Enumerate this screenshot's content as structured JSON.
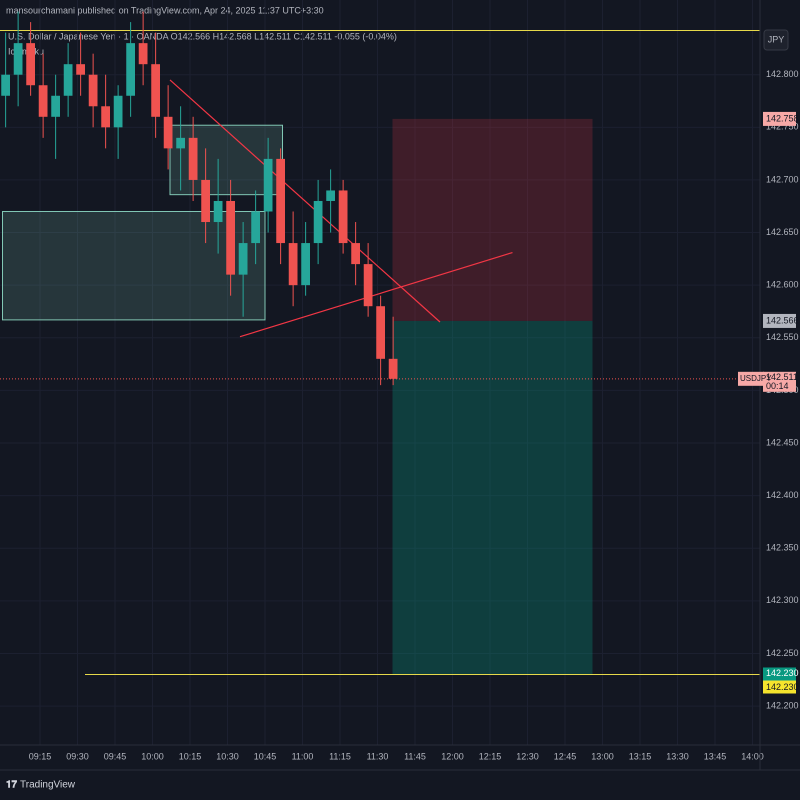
{
  "chart_data": {
    "type": "candlestick",
    "attribution": "mansourchamani published on TradingView.com, Apr 24, 2025 11:37 UTC+3:30",
    "symbol_line": "U.S. Dollar / Japanese Yen · 1 · OANDA  O142.566 H142.568 L142.511 C142.511 -0.055 (-0.04%)",
    "indicator": "Ichimoku",
    "currency_button": "JPY",
    "brand": "TradingView",
    "up_color": "#26a69a",
    "down_color": "#ef5350",
    "x": [
      "09:00",
      "09:05",
      "09:10",
      "09:15",
      "09:20",
      "09:25",
      "09:30",
      "09:35",
      "09:40",
      "09:45",
      "09:50",
      "09:55",
      "10:00",
      "10:05",
      "10:10",
      "10:15",
      "10:20",
      "10:25",
      "10:30",
      "10:35",
      "10:40",
      "10:45",
      "10:50",
      "10:55",
      "11:00",
      "11:05",
      "11:10",
      "11:15",
      "11:20",
      "11:25",
      "11:30",
      "11:35"
    ],
    "open": [
      142.78,
      142.8,
      142.83,
      142.79,
      142.76,
      142.78,
      142.81,
      142.8,
      142.77,
      142.75,
      142.78,
      142.83,
      142.81,
      142.76,
      142.73,
      142.74,
      142.7,
      142.66,
      142.68,
      142.61,
      142.64,
      142.67,
      142.72,
      142.64,
      142.6,
      142.64,
      142.68,
      142.69,
      142.64,
      142.62,
      142.58,
      142.53
    ],
    "high": [
      142.84,
      142.86,
      142.85,
      142.82,
      142.8,
      142.83,
      142.84,
      142.82,
      142.8,
      142.79,
      142.85,
      142.86,
      142.84,
      142.79,
      142.77,
      142.76,
      142.73,
      142.72,
      142.7,
      142.66,
      142.69,
      142.74,
      142.73,
      142.67,
      142.66,
      142.7,
      142.71,
      142.7,
      142.66,
      142.64,
      142.59,
      142.57
    ],
    "low": [
      142.75,
      142.77,
      142.78,
      142.74,
      142.72,
      142.76,
      142.78,
      142.75,
      142.73,
      142.72,
      142.76,
      142.79,
      142.74,
      142.71,
      142.69,
      142.68,
      142.64,
      142.63,
      142.59,
      142.57,
      142.62,
      142.65,
      142.62,
      142.58,
      142.59,
      142.62,
      142.65,
      142.63,
      142.6,
      142.57,
      142.505,
      142.505
    ],
    "close": [
      142.8,
      142.83,
      142.79,
      142.76,
      142.78,
      142.81,
      142.8,
      142.77,
      142.75,
      142.78,
      142.83,
      142.81,
      142.76,
      142.73,
      142.74,
      142.7,
      142.66,
      142.68,
      142.61,
      142.64,
      142.67,
      142.72,
      142.64,
      142.6,
      142.64,
      142.68,
      142.69,
      142.64,
      142.62,
      142.58,
      142.53,
      142.511
    ],
    "xlim": [
      "08:59",
      "14:03"
    ],
    "xticks": [
      "09:15",
      "09:30",
      "09:45",
      "10:00",
      "10:15",
      "10:30",
      "10:45",
      "11:00",
      "11:15",
      "11:30",
      "11:45",
      "12:00",
      "12:15",
      "12:30",
      "12:45",
      "13:00",
      "13:15",
      "13:30",
      "13:45",
      "14:00"
    ],
    "ylim": [
      142.163,
      142.871
    ],
    "yticks": [
      {
        "value": 142.2,
        "label": "142.200"
      },
      {
        "value": 142.25,
        "label": "142.250"
      },
      {
        "value": 142.3,
        "label": "142.300"
      },
      {
        "value": 142.35,
        "label": "142.350"
      },
      {
        "value": 142.4,
        "label": "142.400"
      },
      {
        "value": 142.45,
        "label": "142.450"
      },
      {
        "value": 142.5,
        "label": "142.500"
      },
      {
        "value": 142.55,
        "label": "142.550"
      },
      {
        "value": 142.6,
        "label": "142.600"
      },
      {
        "value": 142.65,
        "label": "142.650"
      },
      {
        "value": 142.7,
        "label": "142.700"
      },
      {
        "value": 142.75,
        "label": "142.750"
      },
      {
        "value": 142.8,
        "label": "142.800"
      }
    ],
    "zones": [
      {
        "x": [
          "09:00",
          "10:45"
        ],
        "y": [
          142.567,
          142.67
        ]
      },
      {
        "x": [
          "10:07",
          "10:52"
        ],
        "y": [
          142.686,
          142.752
        ]
      }
    ],
    "trendlines": [
      {
        "x": [
          "10:35",
          "12:24"
        ],
        "y": [
          142.551,
          142.631
        ]
      },
      {
        "x": [
          "10:07",
          "11:55"
        ],
        "y": [
          142.795,
          142.565
        ]
      }
    ],
    "position": {
      "x": [
        "11:36",
        "12:56"
      ],
      "stop": 142.758,
      "entry": 142.566,
      "target": {
        "value": 142.23,
        "label": "142.230"
      }
    },
    "hlines": [
      142.842,
      {
        "value": 142.23,
        "label": "142.230"
      }
    ],
    "last_price": 142.511,
    "symbol_tag": "USDJPY",
    "countdown": "00:14"
  }
}
